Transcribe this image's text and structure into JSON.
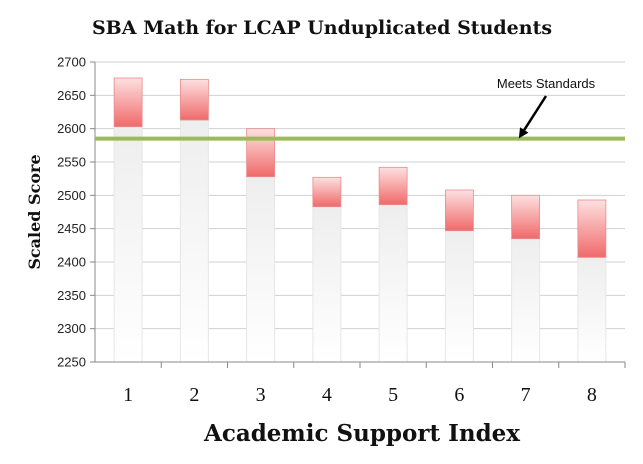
{
  "chart_data": {
    "type": "bar",
    "title": "SBA Math for LCAP Unduplicated Students",
    "xlabel": "Academic Support Index",
    "ylabel": "Scaled Score",
    "categories": [
      "1",
      "2",
      "3",
      "4",
      "5",
      "6",
      "7",
      "8"
    ],
    "ranges": [
      {
        "low": 2603,
        "high": 2676
      },
      {
        "low": 2613,
        "high": 2674
      },
      {
        "low": 2528,
        "high": 2600
      },
      {
        "low": 2483,
        "high": 2527
      },
      {
        "low": 2486,
        "high": 2542
      },
      {
        "low": 2447,
        "high": 2508
      },
      {
        "low": 2435,
        "high": 2500
      },
      {
        "low": 2407,
        "high": 2493
      }
    ],
    "ylim": [
      2250,
      2700
    ],
    "yticks": [
      "2700",
      "2650",
      "2600",
      "2550",
      "2500",
      "2450",
      "2400",
      "2350",
      "2300",
      "2250"
    ],
    "reference_line": {
      "value": 2585,
      "label": "Meets Standards",
      "color": "#9bbb59"
    },
    "bar_color": "#f27b7b",
    "grid": "horizontal",
    "legend": "none"
  }
}
